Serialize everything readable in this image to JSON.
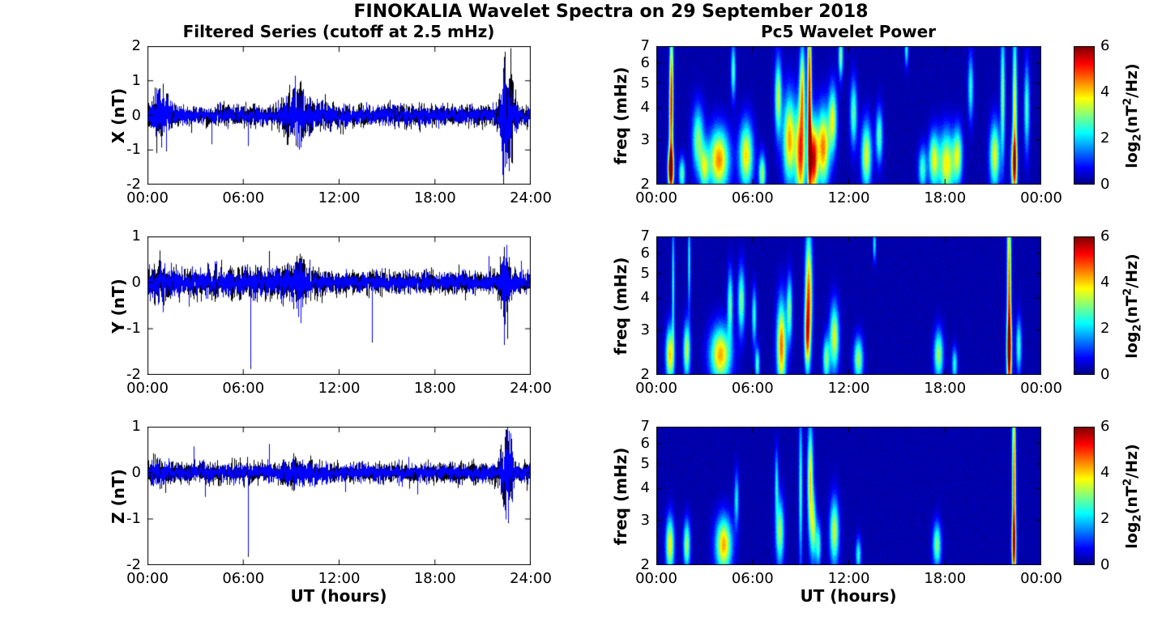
{
  "figure": {
    "title": "FINOKALIA Wavelet Spectra on 29 September 2018",
    "left_title": "Filtered Series (cutoff at 2.5 mHz)",
    "right_title": "Pc5 Wavelet Power",
    "xlabel": "UT (hours)",
    "colorbar": {
      "ticks": [
        0,
        2,
        4,
        6
      ],
      "range": [
        0,
        6
      ],
      "colormap": "jet",
      "label": {
        "prefix": "log",
        "sub": "2",
        "mid": "(nT",
        "sup": "2",
        "suffix": "/Hz)"
      }
    }
  },
  "chart_data": [
    {
      "type": "line",
      "name": "X filtered series",
      "ylabel": "X (nT)",
      "units": "nT",
      "line_color": "#0000FF",
      "overplot_color": "#000000",
      "xlim": [
        0,
        24
      ],
      "ylim": [
        -2,
        2
      ],
      "yticks": [
        -2,
        -1,
        0,
        1,
        2
      ],
      "xticks": [
        "00:00",
        "06:00",
        "12:00",
        "18:00",
        "24:00"
      ],
      "noise_sigma": 0.11,
      "bursts": [
        {
          "t": 0.8,
          "w": 0.45,
          "s": 0.22
        },
        {
          "t": 9.35,
          "w": 0.5,
          "s": 0.26
        },
        {
          "t": 10.3,
          "w": 0.9,
          "s": 0.07
        },
        {
          "t": 22.55,
          "w": 0.3,
          "s": 0.68
        },
        {
          "t": 16.0,
          "w": 6.0,
          "s": 0.02
        }
      ],
      "spikes": [
        {
          "t": 0.55,
          "a": 0.75,
          "w": 0.012
        },
        {
          "t": 1.15,
          "a": -1.0,
          "w": 0.012
        },
        {
          "t": 4.0,
          "a": -0.8,
          "w": 0.01
        },
        {
          "t": 6.3,
          "a": -0.85,
          "w": 0.01
        },
        {
          "t": 9.25,
          "a": 1.1,
          "w": 0.01
        },
        {
          "t": 9.5,
          "a": -0.95,
          "w": 0.01
        },
        {
          "t": 22.4,
          "a": 1.6,
          "w": 0.015
        },
        {
          "t": 22.65,
          "a": -1.55,
          "w": 0.015
        }
      ]
    },
    {
      "type": "line",
      "name": "Y filtered series",
      "ylabel": "Y (nT)",
      "units": "nT",
      "line_color": "#0000FF",
      "overplot_color": "#000000",
      "xlim": [
        0,
        24
      ],
      "ylim": [
        -2,
        1
      ],
      "yticks": [
        -2,
        -1,
        0,
        1
      ],
      "xticks": [
        "00:00",
        "06:00",
        "12:00",
        "18:00",
        "24:00"
      ],
      "noise_sigma": 0.1,
      "bursts": [
        {
          "t": 0.9,
          "w": 0.4,
          "s": 0.07
        },
        {
          "t": 4.0,
          "w": 3.0,
          "s": 0.04
        },
        {
          "t": 8.8,
          "w": 1.2,
          "s": 0.06
        },
        {
          "t": 9.6,
          "w": 0.35,
          "s": 0.1
        },
        {
          "t": 22.4,
          "w": 0.22,
          "s": 0.28
        }
      ],
      "spikes": [
        {
          "t": 2.6,
          "a": -0.5,
          "w": 0.01
        },
        {
          "t": 6.42,
          "a": -1.8,
          "w": 0.012
        },
        {
          "t": 9.6,
          "a": 0.5,
          "w": 0.01
        },
        {
          "t": 14.05,
          "a": -1.25,
          "w": 0.012
        },
        {
          "t": 21.35,
          "a": 0.55,
          "w": 0.012
        },
        {
          "t": 22.35,
          "a": -1.3,
          "w": 0.014
        },
        {
          "t": 23.4,
          "a": 0.45,
          "w": 0.01
        }
      ]
    },
    {
      "type": "line",
      "name": "Z filtered series",
      "ylabel": "Z (nT)",
      "units": "nT",
      "line_color": "#0000FF",
      "overplot_color": "#000000",
      "xlim": [
        0,
        24
      ],
      "ylim": [
        -2,
        1
      ],
      "yticks": [
        -2,
        -1,
        0,
        1
      ],
      "xticks": [
        "00:00",
        "06:00",
        "12:00",
        "18:00",
        "24:00"
      ],
      "noise_sigma": 0.09,
      "bursts": [
        {
          "t": 0.8,
          "w": 0.5,
          "s": 0.04
        },
        {
          "t": 9.5,
          "w": 0.8,
          "s": 0.05
        },
        {
          "t": 22.5,
          "w": 0.25,
          "s": 0.4
        }
      ],
      "spikes": [
        {
          "t": 2.9,
          "a": 0.55,
          "w": 0.01
        },
        {
          "t": 3.6,
          "a": -0.5,
          "w": 0.01
        },
        {
          "t": 6.3,
          "a": -1.75,
          "w": 0.012
        },
        {
          "t": 7.6,
          "a": 0.6,
          "w": 0.012
        },
        {
          "t": 12.4,
          "a": -0.4,
          "w": 0.01
        },
        {
          "t": 16.9,
          "a": -0.45,
          "w": 0.01
        },
        {
          "t": 22.45,
          "a": 0.9,
          "w": 0.015
        },
        {
          "t": 22.6,
          "a": -1.05,
          "w": 0.014
        }
      ]
    },
    {
      "type": "heatmap",
      "name": "X Pc5 wavelet power",
      "ylabel": "freq (mHz)",
      "yscale": "log2",
      "xlim": [
        0,
        24
      ],
      "ylim": [
        2,
        7
      ],
      "yticks": [
        2,
        3,
        4,
        5,
        6,
        7
      ],
      "xticks": [
        "00:00",
        "06:00",
        "12:00",
        "18:00",
        "00:00"
      ],
      "clim": [
        0,
        6
      ],
      "colormap": "jet",
      "blobs": [
        {
          "t": 0.9,
          "f": 2.3,
          "st": 0.12,
          "sf": 0.18,
          "a": 6.2
        },
        {
          "t": 0.92,
          "f": 3.4,
          "st": 0.09,
          "sf": 0.5,
          "a": 3.8
        },
        {
          "t": 0.95,
          "f": 5.8,
          "st": 0.08,
          "sf": 0.5,
          "a": 3.0
        },
        {
          "t": 1.6,
          "f": 2.2,
          "st": 0.14,
          "sf": 0.15,
          "a": 2.6
        },
        {
          "t": 2.6,
          "f": 3.0,
          "st": 0.25,
          "sf": 0.3,
          "a": 2.8
        },
        {
          "t": 3.0,
          "f": 2.3,
          "st": 0.2,
          "sf": 0.2,
          "a": 2.6
        },
        {
          "t": 3.9,
          "f": 2.5,
          "st": 0.45,
          "sf": 0.28,
          "a": 4.2
        },
        {
          "t": 4.8,
          "f": 5.6,
          "st": 0.1,
          "sf": 0.25,
          "a": 2.5
        },
        {
          "t": 5.6,
          "f": 2.6,
          "st": 0.3,
          "sf": 0.3,
          "a": 3.7
        },
        {
          "t": 6.6,
          "f": 2.2,
          "st": 0.15,
          "sf": 0.18,
          "a": 3.0
        },
        {
          "t": 7.6,
          "f": 4.4,
          "st": 0.15,
          "sf": 0.35,
          "a": 3.2
        },
        {
          "t": 8.3,
          "f": 3.0,
          "st": 0.28,
          "sf": 0.4,
          "a": 4.0
        },
        {
          "t": 9.0,
          "f": 2.6,
          "st": 0.22,
          "sf": 0.45,
          "a": 4.6
        },
        {
          "t": 9.1,
          "f": 4.8,
          "st": 0.12,
          "sf": 0.4,
          "a": 3.5
        },
        {
          "t": 9.55,
          "f": 4.0,
          "st": 0.09,
          "sf": 1.0,
          "a": 5.4
        },
        {
          "t": 9.8,
          "f": 2.5,
          "st": 0.18,
          "sf": 0.35,
          "a": 5.0
        },
        {
          "t": 10.4,
          "f": 2.8,
          "st": 0.28,
          "sf": 0.35,
          "a": 4.3
        },
        {
          "t": 11.0,
          "f": 3.6,
          "st": 0.18,
          "sf": 0.3,
          "a": 3.3
        },
        {
          "t": 11.5,
          "f": 6.4,
          "st": 0.1,
          "sf": 0.2,
          "a": 2.8
        },
        {
          "t": 12.3,
          "f": 3.8,
          "st": 0.15,
          "sf": 0.3,
          "a": 2.6
        },
        {
          "t": 13.1,
          "f": 2.6,
          "st": 0.22,
          "sf": 0.3,
          "a": 3.4
        },
        {
          "t": 13.9,
          "f": 3.1,
          "st": 0.15,
          "sf": 0.25,
          "a": 2.6
        },
        {
          "t": 15.6,
          "f": 6.8,
          "st": 0.08,
          "sf": 0.15,
          "a": 2.2
        },
        {
          "t": 16.6,
          "f": 2.3,
          "st": 0.18,
          "sf": 0.2,
          "a": 2.4
        },
        {
          "t": 17.3,
          "f": 2.5,
          "st": 0.22,
          "sf": 0.25,
          "a": 3.2
        },
        {
          "t": 18.1,
          "f": 2.4,
          "st": 0.35,
          "sf": 0.3,
          "a": 3.6
        },
        {
          "t": 18.8,
          "f": 2.6,
          "st": 0.2,
          "sf": 0.25,
          "a": 3.0
        },
        {
          "t": 19.6,
          "f": 4.8,
          "st": 0.12,
          "sf": 0.3,
          "a": 2.2
        },
        {
          "t": 21.1,
          "f": 2.6,
          "st": 0.22,
          "sf": 0.3,
          "a": 3.4
        },
        {
          "t": 21.6,
          "f": 4.5,
          "st": 0.1,
          "sf": 0.6,
          "a": 2.8
        },
        {
          "t": 22.35,
          "f": 3.5,
          "st": 0.1,
          "sf": 0.9,
          "a": 3.6
        },
        {
          "t": 22.3,
          "f": 2.4,
          "st": 0.14,
          "sf": 0.25,
          "a": 3.2
        },
        {
          "t": 23.1,
          "f": 4.0,
          "st": 0.12,
          "sf": 0.4,
          "a": 2.4
        }
      ]
    },
    {
      "type": "heatmap",
      "name": "Y Pc5 wavelet power",
      "ylabel": "freq (mHz)",
      "yscale": "log2",
      "xlim": [
        0,
        24
      ],
      "ylim": [
        2,
        7
      ],
      "yticks": [
        2,
        3,
        4,
        5,
        6,
        7
      ],
      "xticks": [
        "00:00",
        "06:00",
        "12:00",
        "18:00",
        "00:00"
      ],
      "clim": [
        0,
        6
      ],
      "colormap": "jet",
      "blobs": [
        {
          "t": 0.85,
          "f": 2.4,
          "st": 0.18,
          "sf": 0.25,
          "a": 3.8
        },
        {
          "t": 1.05,
          "f": 4.5,
          "st": 0.06,
          "sf": 0.6,
          "a": 2.2
        },
        {
          "t": 1.9,
          "f": 2.5,
          "st": 0.15,
          "sf": 0.25,
          "a": 3.2
        },
        {
          "t": 2.05,
          "f": 5.5,
          "st": 0.06,
          "sf": 0.4,
          "a": 2.2
        },
        {
          "t": 4.0,
          "f": 2.4,
          "st": 0.45,
          "sf": 0.25,
          "a": 4.0
        },
        {
          "t": 4.6,
          "f": 3.8,
          "st": 0.12,
          "sf": 0.3,
          "a": 2.6
        },
        {
          "t": 5.3,
          "f": 3.9,
          "st": 0.15,
          "sf": 0.3,
          "a": 2.8
        },
        {
          "t": 6.1,
          "f": 3.4,
          "st": 0.1,
          "sf": 0.25,
          "a": 2.3
        },
        {
          "t": 6.3,
          "f": 2.2,
          "st": 0.1,
          "sf": 0.15,
          "a": 2.5
        },
        {
          "t": 7.8,
          "f": 2.6,
          "st": 0.2,
          "sf": 0.4,
          "a": 4.4
        },
        {
          "t": 8.3,
          "f": 3.6,
          "st": 0.12,
          "sf": 0.3,
          "a": 2.8
        },
        {
          "t": 9.5,
          "f": 4.2,
          "st": 0.15,
          "sf": 0.55,
          "a": 4.4
        },
        {
          "t": 9.4,
          "f": 2.8,
          "st": 0.12,
          "sf": 0.3,
          "a": 3.2
        },
        {
          "t": 10.6,
          "f": 2.3,
          "st": 0.15,
          "sf": 0.2,
          "a": 2.8
        },
        {
          "t": 11.1,
          "f": 2.8,
          "st": 0.2,
          "sf": 0.3,
          "a": 3.4
        },
        {
          "t": 12.6,
          "f": 2.3,
          "st": 0.2,
          "sf": 0.2,
          "a": 3.0
        },
        {
          "t": 13.6,
          "f": 6.5,
          "st": 0.07,
          "sf": 0.15,
          "a": 2.0
        },
        {
          "t": 17.6,
          "f": 2.4,
          "st": 0.2,
          "sf": 0.22,
          "a": 3.0
        },
        {
          "t": 18.6,
          "f": 2.2,
          "st": 0.12,
          "sf": 0.15,
          "a": 2.2
        },
        {
          "t": 22.0,
          "f": 4.0,
          "st": 0.09,
          "sf": 1.1,
          "a": 4.6
        },
        {
          "t": 22.0,
          "f": 2.5,
          "st": 0.12,
          "sf": 0.3,
          "a": 3.4
        },
        {
          "t": 22.6,
          "f": 2.6,
          "st": 0.12,
          "sf": 0.25,
          "a": 2.4
        }
      ]
    },
    {
      "type": "heatmap",
      "name": "Z Pc5 wavelet power",
      "ylabel": "freq (mHz)",
      "yscale": "log2",
      "xlim": [
        0,
        24
      ],
      "ylim": [
        2,
        7
      ],
      "yticks": [
        2,
        3,
        4,
        5,
        6,
        7
      ],
      "xticks": [
        "00:00",
        "06:00",
        "12:00",
        "18:00",
        "00:00"
      ],
      "clim": [
        0,
        6
      ],
      "colormap": "jet",
      "blobs": [
        {
          "t": 0.85,
          "f": 2.4,
          "st": 0.18,
          "sf": 0.25,
          "a": 3.6
        },
        {
          "t": 1.9,
          "f": 2.4,
          "st": 0.15,
          "sf": 0.22,
          "a": 3.0
        },
        {
          "t": 4.2,
          "f": 2.4,
          "st": 0.35,
          "sf": 0.25,
          "a": 4.0
        },
        {
          "t": 5.0,
          "f": 3.6,
          "st": 0.1,
          "sf": 0.25,
          "a": 2.0
        },
        {
          "t": 7.7,
          "f": 2.7,
          "st": 0.18,
          "sf": 0.3,
          "a": 3.0
        },
        {
          "t": 7.5,
          "f": 4.2,
          "st": 0.08,
          "sf": 0.3,
          "a": 2.0
        },
        {
          "t": 9.0,
          "f": 4.0,
          "st": 0.08,
          "sf": 0.7,
          "a": 2.4
        },
        {
          "t": 9.6,
          "f": 4.3,
          "st": 0.12,
          "sf": 0.5,
          "a": 3.8
        },
        {
          "t": 9.8,
          "f": 2.8,
          "st": 0.12,
          "sf": 0.3,
          "a": 2.8
        },
        {
          "t": 10.1,
          "f": 2.4,
          "st": 0.12,
          "sf": 0.2,
          "a": 2.4
        },
        {
          "t": 11.1,
          "f": 2.7,
          "st": 0.2,
          "sf": 0.3,
          "a": 3.2
        },
        {
          "t": 12.6,
          "f": 2.2,
          "st": 0.12,
          "sf": 0.15,
          "a": 2.2
        },
        {
          "t": 17.5,
          "f": 2.4,
          "st": 0.18,
          "sf": 0.2,
          "a": 2.8
        },
        {
          "t": 22.3,
          "f": 4.2,
          "st": 0.08,
          "sf": 1.0,
          "a": 4.6
        },
        {
          "t": 22.3,
          "f": 2.4,
          "st": 0.1,
          "sf": 0.25,
          "a": 3.0
        }
      ]
    }
  ]
}
